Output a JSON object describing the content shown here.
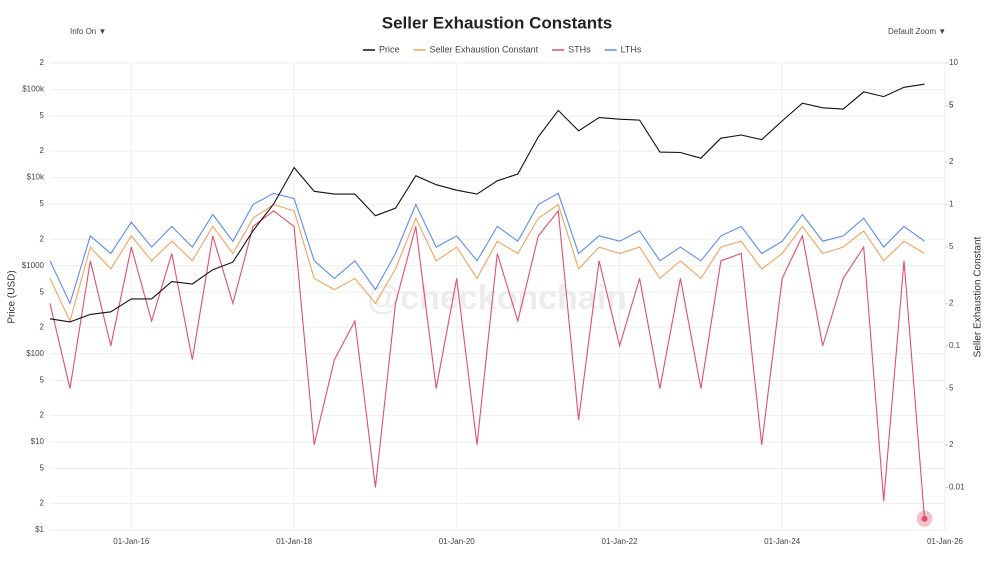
{
  "chart_data": {
    "type": "line",
    "title": "Seller Exhaustion Constants",
    "controls": {
      "left": "Info On ▼",
      "right": "Default Zoom ▼"
    },
    "watermark": "@checkonchain",
    "y_label": "Price (USD)",
    "y2_label": "Seller Exhaustion Constant",
    "log_y": true,
    "log_y2": true,
    "grid": true,
    "legend": "top",
    "xlim": [
      "2015-01-01",
      "2026-01-01"
    ],
    "xticks": [
      {
        "value": "2016-01-01",
        "label": "01-Jan-16"
      },
      {
        "value": "2018-01-01",
        "label": "01-Jan-18"
      },
      {
        "value": "2020-01-01",
        "label": "01-Jan-20"
      },
      {
        "value": "2022-01-01",
        "label": "01-Jan-22"
      },
      {
        "value": "2024-01-01",
        "label": "01-Jan-24"
      },
      {
        "value": "2026-01-01",
        "label": "01-Jan-26"
      }
    ],
    "ylim": [
      1,
      200000
    ],
    "yticks": [
      {
        "value": 1,
        "label": "$1"
      },
      2,
      5,
      {
        "value": 10,
        "label": "$10"
      },
      {
        "value": 20,
        "label": "2"
      },
      {
        "value": 50,
        "label": "5"
      },
      {
        "value": 100,
        "label": "$100"
      },
      {
        "value": 200,
        "label": "2"
      },
      {
        "value": 500,
        "label": "5"
      },
      {
        "value": 1000,
        "label": "$1000"
      },
      {
        "value": 2000,
        "label": "2"
      },
      {
        "value": 5000,
        "label": "5"
      },
      {
        "value": 10000,
        "label": "$10k"
      },
      {
        "value": 20000,
        "label": "2"
      },
      {
        "value": 50000,
        "label": "5"
      },
      {
        "value": 100000,
        "label": "$100k"
      },
      {
        "value": 200000,
        "label": "2"
      }
    ],
    "y2lim": [
      0.005,
      10
    ],
    "y2ticks": [
      5,
      0.01,
      {
        "value": 0.02,
        "label": "2"
      },
      {
        "value": 0.05,
        "label": "5"
      },
      0.1,
      {
        "value": 0.2,
        "label": "2"
      },
      {
        "value": 0.5,
        "label": "5"
      },
      1,
      2,
      5,
      10
    ],
    "x": [
      "2015-01-01",
      "2015-04-01",
      "2015-07-01",
      "2015-10-01",
      "2016-01-01",
      "2016-04-01",
      "2016-07-01",
      "2016-10-01",
      "2017-01-01",
      "2017-04-01",
      "2017-07-01",
      "2017-10-01",
      "2018-01-01",
      "2018-04-01",
      "2018-07-01",
      "2018-10-01",
      "2019-01-01",
      "2019-04-01",
      "2019-07-01",
      "2019-10-01",
      "2020-01-01",
      "2020-04-01",
      "2020-07-01",
      "2020-10-01",
      "2021-01-01",
      "2021-04-01",
      "2021-07-01",
      "2021-10-01",
      "2022-01-01",
      "2022-04-01",
      "2022-07-01",
      "2022-10-01",
      "2023-01-01",
      "2023-04-01",
      "2023-07-01",
      "2023-10-01",
      "2024-01-01",
      "2024-04-01",
      "2024-07-01",
      "2024-10-01",
      "2025-01-01",
      "2025-04-01",
      "2025-07-01",
      "2025-10-01"
    ],
    "series": [
      {
        "name": "Price",
        "color": "#111111",
        "axis": "y",
        "values": [
          250,
          230,
          280,
          300,
          420,
          420,
          660,
          620,
          900,
          1100,
          2500,
          5000,
          13000,
          7000,
          6500,
          6500,
          3700,
          4500,
          10500,
          8300,
          7200,
          6500,
          9200,
          11000,
          29000,
          58000,
          34000,
          48000,
          46000,
          45000,
          19500,
          19300,
          16600,
          28000,
          30500,
          27000,
          44000,
          70000,
          62000,
          60000,
          94000,
          83000,
          106000,
          115000
        ]
      },
      {
        "name": "Seller Exhaustion Constant",
        "color": "#f5a35c",
        "axis": "y2",
        "values": [
          0.3,
          0.15,
          0.5,
          0.35,
          0.6,
          0.4,
          0.55,
          0.4,
          0.7,
          0.45,
          0.8,
          1.0,
          0.9,
          0.3,
          0.25,
          0.3,
          0.2,
          0.35,
          0.8,
          0.4,
          0.5,
          0.3,
          0.55,
          0.45,
          0.8,
          1.0,
          0.35,
          0.5,
          0.45,
          0.5,
          0.3,
          0.4,
          0.3,
          0.5,
          0.55,
          0.35,
          0.45,
          0.7,
          0.45,
          0.5,
          0.65,
          0.4,
          0.55,
          0.45
        ]
      },
      {
        "name": "STHs",
        "color": "#e0506e",
        "axis": "y2",
        "values": [
          0.2,
          0.05,
          0.4,
          0.1,
          0.5,
          0.15,
          0.45,
          0.08,
          0.6,
          0.2,
          0.7,
          0.9,
          0.7,
          0.02,
          0.08,
          0.15,
          0.01,
          0.2,
          0.7,
          0.05,
          0.3,
          0.02,
          0.45,
          0.15,
          0.6,
          0.9,
          0.03,
          0.4,
          0.1,
          0.3,
          0.05,
          0.3,
          0.05,
          0.4,
          0.45,
          0.02,
          0.3,
          0.6,
          0.1,
          0.3,
          0.5,
          0.008,
          0.4,
          0.006
        ]
      },
      {
        "name": "LTHs",
        "color": "#5b8def",
        "axis": "y2",
        "values": [
          0.4,
          0.2,
          0.6,
          0.45,
          0.75,
          0.5,
          0.7,
          0.5,
          0.85,
          0.55,
          1.0,
          1.2,
          1.1,
          0.4,
          0.3,
          0.4,
          0.25,
          0.45,
          1.0,
          0.5,
          0.6,
          0.4,
          0.7,
          0.55,
          1.0,
          1.2,
          0.45,
          0.6,
          0.55,
          0.65,
          0.4,
          0.5,
          0.4,
          0.6,
          0.7,
          0.45,
          0.55,
          0.85,
          0.55,
          0.6,
          0.8,
          0.5,
          0.7,
          0.55
        ]
      }
    ]
  }
}
